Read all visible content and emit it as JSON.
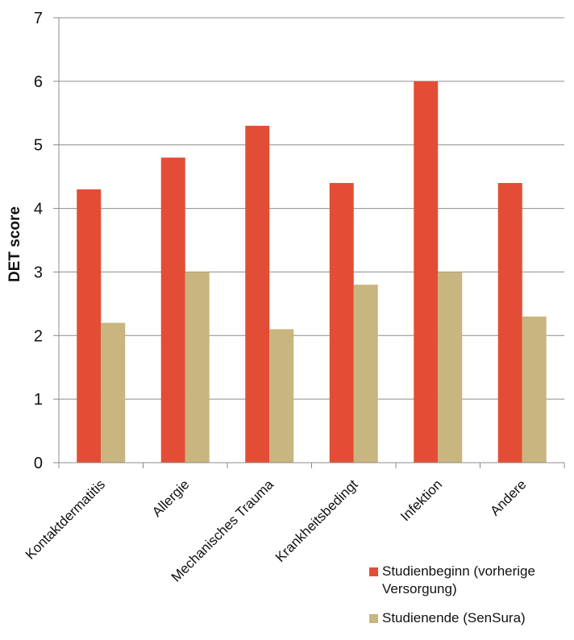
{
  "chart_data": {
    "type": "bar",
    "categories": [
      "Kontaktdermatitis",
      "Allergie",
      "Mechanisches Trauma",
      "Krankheitsbedingt",
      "Infektion",
      "Andere"
    ],
    "series": [
      {
        "name": "Studienbeginn (vorherige Versorgung)",
        "color": "#e34d35",
        "values": [
          4.3,
          4.8,
          5.3,
          4.4,
          6.0,
          4.4
        ]
      },
      {
        "name": "Studienende  (SenSura)",
        "color": "#c8b57f",
        "values": [
          2.2,
          3.0,
          2.1,
          2.8,
          3.0,
          2.3
        ]
      }
    ],
    "ylabel": "DET score",
    "ylim": [
      0,
      7
    ],
    "yticks": [
      0,
      1,
      2,
      3,
      4,
      5,
      6,
      7
    ],
    "grid": true,
    "legend_position": "bottom-right"
  },
  "legend": {
    "items": [
      {
        "label_line1": "Studienbeginn (vorherige",
        "label_line2": "Versorgung)"
      },
      {
        "label_line1": "Studienende  (SenSura)"
      }
    ]
  }
}
